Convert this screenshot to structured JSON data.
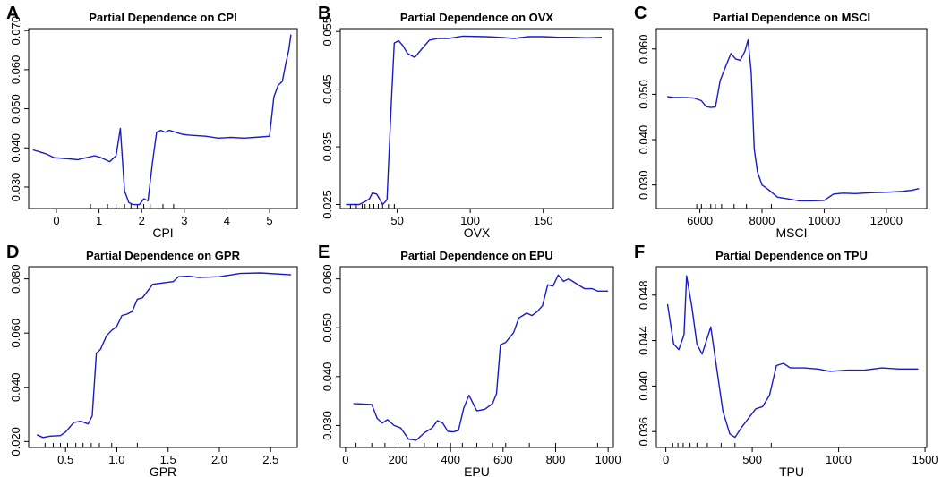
{
  "chart_data": [
    {
      "panel": "A",
      "type": "line",
      "title": "Partial Dependence on CPI",
      "xlabel": "CPI",
      "ylabel": "",
      "xlim": [
        -0.65,
        5.65
      ],
      "ylim": [
        0.0245,
        0.0705
      ],
      "xticks": [
        0,
        1,
        2,
        3,
        4,
        5
      ],
      "yticks": [
        0.03,
        0.04,
        0.05,
        0.06,
        0.07
      ],
      "rug": [
        0.8,
        1.2,
        1.4,
        1.6,
        1.75,
        1.9,
        2.05,
        2.2,
        2.5,
        2.75
      ],
      "series": [
        {
          "name": "partial dependence",
          "x": [
            -0.55,
            -0.4,
            -0.25,
            -0.15,
            -0.05,
            0.3,
            0.5,
            0.7,
            0.9,
            1.05,
            1.25,
            1.4,
            1.5,
            1.6,
            1.7,
            1.8,
            1.95,
            2.05,
            2.15,
            2.25,
            2.35,
            2.45,
            2.55,
            2.65,
            2.8,
            2.95,
            3.1,
            3.5,
            3.8,
            4.1,
            4.4,
            4.8,
            5.0,
            5.1,
            5.2,
            5.3,
            5.38,
            5.45,
            5.5
          ],
          "y": [
            0.0395,
            0.039,
            0.0385,
            0.038,
            0.0375,
            0.0372,
            0.037,
            0.0375,
            0.038,
            0.0375,
            0.0365,
            0.038,
            0.045,
            0.029,
            0.026,
            0.0255,
            0.0255,
            0.027,
            0.0265,
            0.036,
            0.044,
            0.0445,
            0.044,
            0.0445,
            0.044,
            0.0435,
            0.0433,
            0.043,
            0.0425,
            0.0427,
            0.0425,
            0.0428,
            0.043,
            0.053,
            0.056,
            0.057,
            0.0615,
            0.065,
            0.069
          ]
        }
      ]
    },
    {
      "panel": "B",
      "type": "line",
      "title": "Partial Dependence on OVX",
      "xlabel": "OVX",
      "ylabel": "",
      "xlim": [
        11,
        198
      ],
      "ylim": [
        0.0243,
        0.0555
      ],
      "xticks": [
        50,
        100,
        150
      ],
      "yticks": [
        0.025,
        0.035,
        0.045,
        0.055
      ],
      "rug": [
        18,
        22,
        26,
        28,
        31,
        34,
        37,
        40,
        44,
        48
      ],
      "series": [
        {
          "name": "partial dependence",
          "x": [
            15,
            24,
            28,
            31,
            33,
            36,
            40,
            43,
            46,
            48,
            51,
            54,
            57,
            62,
            67,
            72,
            78,
            85,
            95,
            110,
            120,
            130,
            140,
            150,
            160,
            170,
            180,
            190
          ],
          "y": [
            0.025,
            0.025,
            0.0255,
            0.026,
            0.027,
            0.0268,
            0.025,
            0.0258,
            0.043,
            0.053,
            0.0534,
            0.0525,
            0.0512,
            0.0505,
            0.052,
            0.0535,
            0.0538,
            0.0538,
            0.0542,
            0.0541,
            0.054,
            0.0538,
            0.0541,
            0.0541,
            0.054,
            0.054,
            0.0539,
            0.054
          ]
        }
      ]
    },
    {
      "panel": "C",
      "type": "line",
      "title": "Partial Dependence on MSCI",
      "xlabel": "MSCI",
      "ylabel": "",
      "xlim": [
        4600,
        13300
      ],
      "ylim": [
        0.0248,
        0.0645
      ],
      "xticks": [
        6000,
        8000,
        10000,
        12000
      ],
      "yticks": [
        0.03,
        0.04,
        0.05,
        0.06
      ],
      "rug": [
        5900,
        6050,
        6200,
        6350,
        6500,
        6700,
        7100,
        7500,
        8300
      ],
      "series": [
        {
          "name": "partial dependence",
          "x": [
            4950,
            5150,
            5500,
            5800,
            6050,
            6200,
            6350,
            6500,
            6650,
            6850,
            7000,
            7150,
            7300,
            7450,
            7550,
            7650,
            7750,
            7850,
            8000,
            8200,
            8500,
            8800,
            9200,
            9600,
            10000,
            10300,
            10600,
            11000,
            11500,
            12000,
            12500,
            12800,
            13050
          ],
          "y": [
            0.0495,
            0.0493,
            0.0493,
            0.0492,
            0.0486,
            0.0473,
            0.0471,
            0.0472,
            0.053,
            0.0565,
            0.059,
            0.0578,
            0.0575,
            0.0595,
            0.062,
            0.055,
            0.038,
            0.033,
            0.03,
            0.029,
            0.0273,
            0.027,
            0.0265,
            0.0265,
            0.0266,
            0.028,
            0.0282,
            0.0281,
            0.0283,
            0.0284,
            0.0286,
            0.0288,
            0.0292
          ]
        }
      ]
    },
    {
      "panel": "D",
      "type": "line",
      "title": "Partial Dependence on GPR",
      "xlabel": "GPR",
      "ylabel": "",
      "xlim": [
        0.14,
        2.76
      ],
      "ylim": [
        0.0178,
        0.0845
      ],
      "xticks": [
        0.5,
        1.0,
        1.5,
        2.0,
        2.5
      ],
      "yticks": [
        0.02,
        0.04,
        0.06,
        0.08
      ],
      "rug": [
        0.3,
        0.38,
        0.45,
        0.52,
        0.6,
        0.67,
        0.75,
        0.83,
        0.95,
        1.2
      ],
      "series": [
        {
          "name": "partial dependence",
          "x": [
            0.22,
            0.28,
            0.35,
            0.45,
            0.5,
            0.58,
            0.65,
            0.72,
            0.76,
            0.8,
            0.84,
            0.9,
            0.95,
            1.0,
            1.05,
            1.1,
            1.15,
            1.2,
            1.25,
            1.3,
            1.35,
            1.45,
            1.55,
            1.6,
            1.7,
            1.8,
            2.0,
            2.2,
            2.4,
            2.7
          ],
          "y": [
            0.0225,
            0.0215,
            0.022,
            0.0222,
            0.0235,
            0.027,
            0.0275,
            0.0265,
            0.0295,
            0.0525,
            0.054,
            0.059,
            0.061,
            0.0625,
            0.0665,
            0.067,
            0.068,
            0.0725,
            0.073,
            0.0755,
            0.078,
            0.0785,
            0.079,
            0.0808,
            0.081,
            0.0805,
            0.0808,
            0.082,
            0.0822,
            0.0815
          ]
        }
      ]
    },
    {
      "panel": "E",
      "type": "line",
      "title": "Partial Dependence on EPU",
      "xlabel": "EPU",
      "ylabel": "",
      "xlim": [
        -20,
        1020
      ],
      "ylim": [
        0.0255,
        0.0625
      ],
      "xticks": [
        0,
        200,
        400,
        600,
        800,
        1000
      ],
      "yticks": [
        0.03,
        0.04,
        0.05,
        0.06
      ],
      "rug": [
        40,
        100,
        150,
        200,
        245,
        300,
        350,
        400,
        445,
        500,
        560,
        610,
        700,
        800,
        960
      ],
      "series": [
        {
          "name": "partial dependence",
          "x": [
            30,
            100,
            120,
            140,
            160,
            185,
            210,
            240,
            270,
            300,
            330,
            350,
            370,
            390,
            410,
            430,
            450,
            470,
            500,
            530,
            560,
            575,
            590,
            610,
            640,
            660,
            690,
            710,
            730,
            750,
            770,
            790,
            810,
            830,
            850,
            880,
            910,
            940,
            960,
            980,
            1000
          ],
          "y": [
            0.0345,
            0.0343,
            0.0315,
            0.0305,
            0.0312,
            0.03,
            0.0295,
            0.0272,
            0.027,
            0.0285,
            0.0295,
            0.031,
            0.0305,
            0.0288,
            0.0287,
            0.029,
            0.0335,
            0.0362,
            0.033,
            0.0333,
            0.0345,
            0.0365,
            0.0465,
            0.047,
            0.049,
            0.052,
            0.053,
            0.0525,
            0.0533,
            0.0545,
            0.0588,
            0.0585,
            0.0608,
            0.0595,
            0.06,
            0.059,
            0.058,
            0.058,
            0.0575,
            0.0575,
            0.0575
          ]
        }
      ]
    },
    {
      "panel": "F",
      "type": "line",
      "title": "Partial Dependence on TPU",
      "xlabel": "TPU",
      "ylabel": "",
      "xlim": [
        -55,
        1510
      ],
      "ylim": [
        0.0346,
        0.0505
      ],
      "xticks": [
        0,
        500,
        1000,
        1500
      ],
      "yticks": [
        0.036,
        0.04,
        0.044,
        0.048
      ],
      "rug": [
        40,
        70,
        100,
        140,
        180,
        240,
        320,
        400,
        610
      ],
      "series": [
        {
          "name": "partial dependence",
          "x": [
            10,
            45,
            75,
            105,
            120,
            150,
            180,
            210,
            260,
            290,
            330,
            370,
            400,
            440,
            480,
            520,
            560,
            600,
            640,
            680,
            720,
            800,
            880,
            950,
            1050,
            1150,
            1250,
            1350,
            1460
          ],
          "y": [
            0.0472,
            0.0437,
            0.0432,
            0.0445,
            0.0497,
            0.047,
            0.0437,
            0.0428,
            0.0452,
            0.042,
            0.0378,
            0.0358,
            0.0355,
            0.0364,
            0.0372,
            0.038,
            0.0382,
            0.0392,
            0.0418,
            0.042,
            0.0416,
            0.0416,
            0.0415,
            0.0413,
            0.0414,
            0.0414,
            0.0416,
            0.0415,
            0.0415
          ]
        }
      ]
    }
  ]
}
